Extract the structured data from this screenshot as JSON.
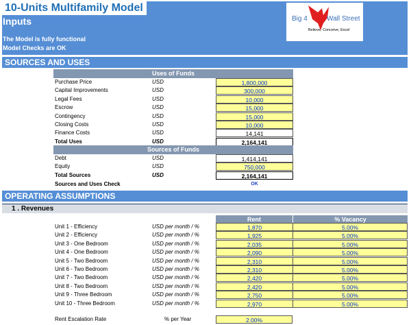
{
  "header": {
    "title": "10-Units Multifamily Model",
    "subtitle": "Inputs",
    "status1": "The Model is fully functional",
    "status2": "Model Checks are OK",
    "logo": {
      "text_left": "Big 4",
      "text_right": "Wall Street",
      "tagline": "Believe, Conceive, Excel"
    }
  },
  "sources_uses": {
    "section_title": "SOURCES AND USES",
    "uses_header": "Uses of Funds",
    "sources_header": "Sources of Funds",
    "uses": [
      {
        "label": "Purchase Price",
        "unit": "USD",
        "value": "1,800,000",
        "input": true
      },
      {
        "label": "Capital Improvements",
        "unit": "USD",
        "value": "300,000",
        "input": true
      },
      {
        "label": "Legal Fees",
        "unit": "USD",
        "value": "10,000",
        "input": true
      },
      {
        "label": "Escrow",
        "unit": "USD",
        "value": "15,000",
        "input": true
      },
      {
        "label": "Contingency",
        "unit": "USD",
        "value": "15,000",
        "input": true
      },
      {
        "label": "Closing Costs",
        "unit": "USD",
        "value": "10,000",
        "input": true
      },
      {
        "label": "Finance Costs",
        "unit": "USD",
        "value": "14,141",
        "input": false
      }
    ],
    "total_uses": {
      "label": "Total Uses",
      "unit": "USD",
      "value": "2,164,141"
    },
    "sources": [
      {
        "label": "Debt",
        "unit": "USD",
        "value": "1,414,141",
        "input": false
      },
      {
        "label": "Equity",
        "unit": "USD",
        "value": "750,000",
        "input": true
      }
    ],
    "total_sources": {
      "label": "Total Sources",
      "unit": "USD",
      "value": "2,164,141"
    },
    "check": {
      "label": "Sources and Uses Check",
      "value": "OK"
    }
  },
  "operating": {
    "section_title": "OPERATING ASSUMPTIONS",
    "revenues_title": "1 . Revenues",
    "col_rent": "Rent",
    "col_vacancy": "% Vacancy",
    "unit_label": "USD per month / %",
    "units": [
      {
        "label": "Unit 1 - Efficiency",
        "rent": "1,870",
        "vacancy": "5.00%"
      },
      {
        "label": "Unit 2 - Efficiency",
        "rent": "1,925",
        "vacancy": "5.00%"
      },
      {
        "label": "Unit 3 - One Bedroom",
        "rent": "2,035",
        "vacancy": "5.00%"
      },
      {
        "label": "Unit 4 - One Bedroom",
        "rent": "2,090",
        "vacancy": "5.00%"
      },
      {
        "label": "Unit 5 - Two Bedroom",
        "rent": "2,310",
        "vacancy": "5.00%"
      },
      {
        "label": "Unit 6 - Two Bedroom",
        "rent": "2,310",
        "vacancy": "5.00%"
      },
      {
        "label": "Unit 7 - Two Bedroom",
        "rent": "2,420",
        "vacancy": "5.00%"
      },
      {
        "label": "Unit 8 - Two Bedroom",
        "rent": "2,420",
        "vacancy": "5.00%"
      },
      {
        "label": "Unit 9 - Three Bedroom",
        "rent": "2,750",
        "vacancy": "5.00%"
      },
      {
        "label": "Unit 10 - Three Bedroom",
        "rent": "2,970",
        "vacancy": "5.00%"
      }
    ],
    "escalation": {
      "label": "Rent Escalation Rate",
      "unit": "% per Year",
      "value": "2.00%"
    }
  },
  "colors": {
    "band": "#558ed5",
    "input_fill": "#ffff99",
    "input_text": "#0033cc",
    "table_header": "#8497b0"
  }
}
